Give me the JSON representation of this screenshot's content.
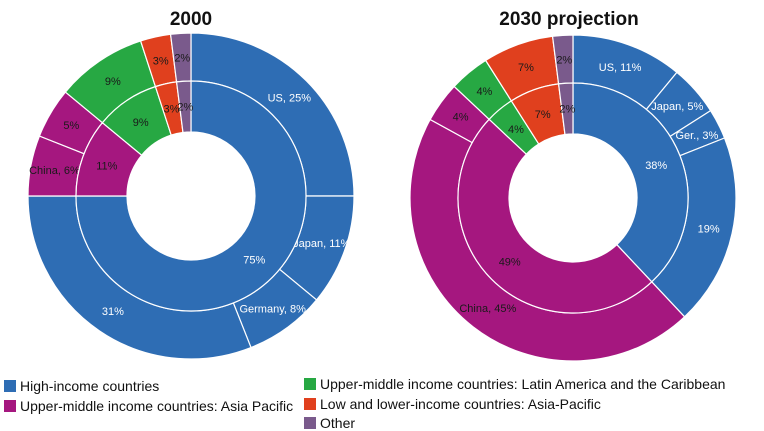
{
  "colors": {
    "high": "#2e6db4",
    "asia": "#a5177f",
    "latam": "#27a843",
    "low": "#e0401e",
    "other": "#7a5a8c",
    "edge": "#ffffff",
    "text_light": "#ffffff",
    "text_dark": "#1a1a1a"
  },
  "legend": [
    {
      "key": "high",
      "label": "High-income countries"
    },
    {
      "key": "asia",
      "label": "Upper-middle income countries: Asia Pacific"
    },
    {
      "key": "latam",
      "label": "Upper-middle income countries: Latin America and the Caribbean"
    },
    {
      "key": "low",
      "label": "Low and lower-income countries: Asia-Pacific"
    },
    {
      "key": "other",
      "label": "Other"
    }
  ],
  "chart_data": [
    {
      "type": "donut",
      "title": "2000",
      "inner": [
        {
          "group": "high",
          "value": 75,
          "label": "75%"
        },
        {
          "group": "asia",
          "value": 11,
          "label": "11%"
        },
        {
          "group": "latam",
          "value": 9,
          "label": "9%"
        },
        {
          "group": "low",
          "value": 3,
          "label": "3%"
        },
        {
          "group": "other",
          "value": 2,
          "label": "2%"
        }
      ],
      "outer": [
        {
          "group": "high",
          "value": 25,
          "label": "US, 25%"
        },
        {
          "group": "high",
          "value": 11,
          "label": "Japan, 11%"
        },
        {
          "group": "high",
          "value": 8,
          "label": "Germany, 8%"
        },
        {
          "group": "high",
          "value": 31,
          "label": "31%"
        },
        {
          "group": "asia",
          "value": 6,
          "label": "China, 6%"
        },
        {
          "group": "asia",
          "value": 5,
          "label": "5%"
        },
        {
          "group": "latam",
          "value": 9,
          "label": "9%"
        },
        {
          "group": "low",
          "value": 3,
          "label": "3%"
        },
        {
          "group": "other",
          "value": 2,
          "label": "2%"
        }
      ]
    },
    {
      "type": "donut",
      "title": "2030 projection",
      "inner": [
        {
          "group": "high",
          "value": 38,
          "label": "38%"
        },
        {
          "group": "asia",
          "value": 49,
          "label": "49%"
        },
        {
          "group": "latam",
          "value": 4,
          "label": "4%"
        },
        {
          "group": "low",
          "value": 7,
          "label": "7%"
        },
        {
          "group": "other",
          "value": 2,
          "label": "2%"
        }
      ],
      "outer": [
        {
          "group": "high",
          "value": 11,
          "label": "US, 11%"
        },
        {
          "group": "high",
          "value": 5,
          "label": "Japan, 5%"
        },
        {
          "group": "high",
          "value": 3,
          "label": "Ger., 3%"
        },
        {
          "group": "high",
          "value": 19,
          "label": "19%"
        },
        {
          "group": "asia",
          "value": 45,
          "label": "China, 45%"
        },
        {
          "group": "asia",
          "value": 4,
          "label": "4%"
        },
        {
          "group": "latam",
          "value": 4,
          "label": "4%"
        },
        {
          "group": "low",
          "value": 7,
          "label": "7%"
        },
        {
          "group": "other",
          "value": 2,
          "label": "2%"
        }
      ]
    }
  ]
}
